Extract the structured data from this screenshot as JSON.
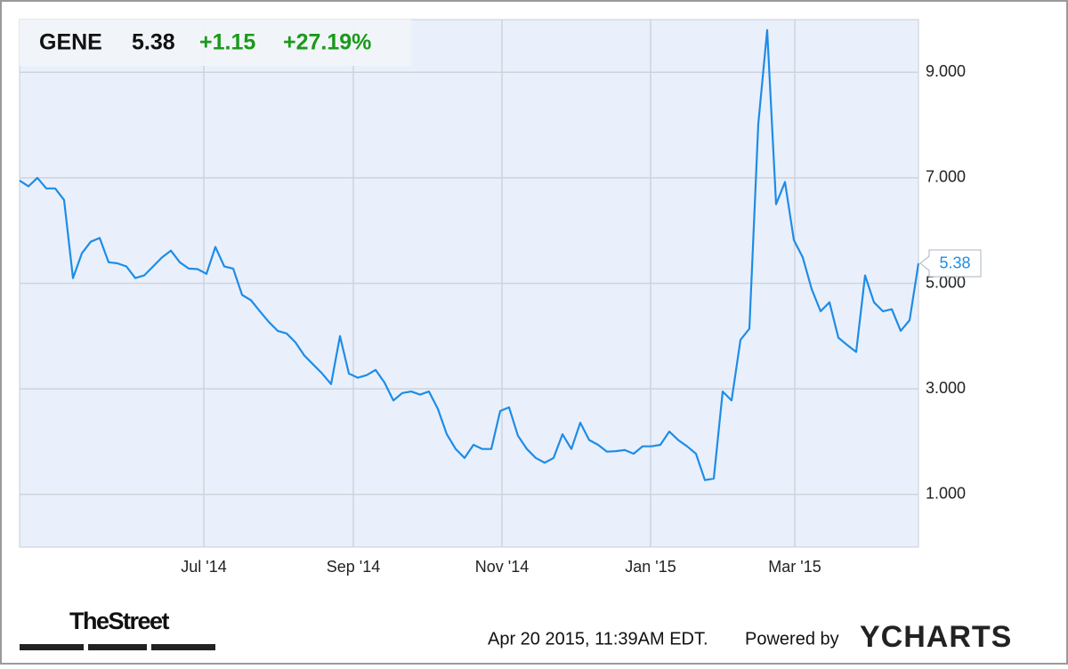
{
  "header": {
    "ticker": "GENE",
    "price": "5.38",
    "change": "+1.15",
    "change_pct": "+27.19%"
  },
  "footer": {
    "source_logo": "TheStreet",
    "timestamp": "Apr 20 2015, 11:39AM EDT.",
    "powered_by": "Powered by",
    "brand": "YCHARTS"
  },
  "chart_data": {
    "type": "line",
    "color": "#1f8ce6",
    "grid": true,
    "values": [
      6.95,
      6.84,
      7.0,
      6.8,
      6.8,
      6.58,
      5.1,
      5.57,
      5.79,
      5.86,
      5.4,
      5.38,
      5.32,
      5.1,
      5.15,
      5.32,
      5.49,
      5.62,
      5.4,
      5.28,
      5.27,
      5.18,
      5.69,
      5.32,
      5.28,
      4.78,
      4.68,
      4.47,
      4.27,
      4.1,
      4.05,
      3.88,
      3.63,
      3.46,
      3.29,
      3.09,
      4.0,
      3.29,
      3.21,
      3.26,
      3.36,
      3.12,
      2.78,
      2.92,
      2.95,
      2.89,
      2.95,
      2.62,
      2.14,
      1.86,
      1.69,
      1.94,
      1.86,
      1.86,
      2.58,
      2.65,
      2.11,
      1.86,
      1.69,
      1.6,
      1.69,
      2.14,
      1.86,
      2.36,
      2.03,
      1.94,
      1.81,
      1.82,
      1.84,
      1.77,
      1.91,
      1.91,
      1.94,
      2.19,
      2.03,
      1.91,
      1.77,
      1.27,
      1.3,
      2.95,
      2.78,
      3.93,
      4.14,
      8.02,
      9.8,
      6.5,
      6.92,
      5.82,
      5.49,
      4.89,
      4.47,
      4.64,
      3.97,
      3.83,
      3.7,
      5.15,
      4.64,
      4.47,
      4.51,
      4.1,
      4.3,
      5.38
    ],
    "xlim": [
      0,
      101
    ],
    "xticks": [
      {
        "value": 20.7,
        "label": "Jul '14"
      },
      {
        "value": 37.5,
        "label": "Sep '14"
      },
      {
        "value": 54.2,
        "label": "Nov '14"
      },
      {
        "value": 70.9,
        "label": "Jan '15"
      },
      {
        "value": 87.1,
        "label": "Mar '15"
      }
    ],
    "ylim": [
      0,
      10
    ],
    "yticks": [
      {
        "value": 1,
        "label": "1.000"
      },
      {
        "value": 3,
        "label": "3.000"
      },
      {
        "value": 5,
        "label": "5.000"
      },
      {
        "value": 7,
        "label": "7.000"
      },
      {
        "value": 9,
        "label": "9.000"
      }
    ]
  }
}
